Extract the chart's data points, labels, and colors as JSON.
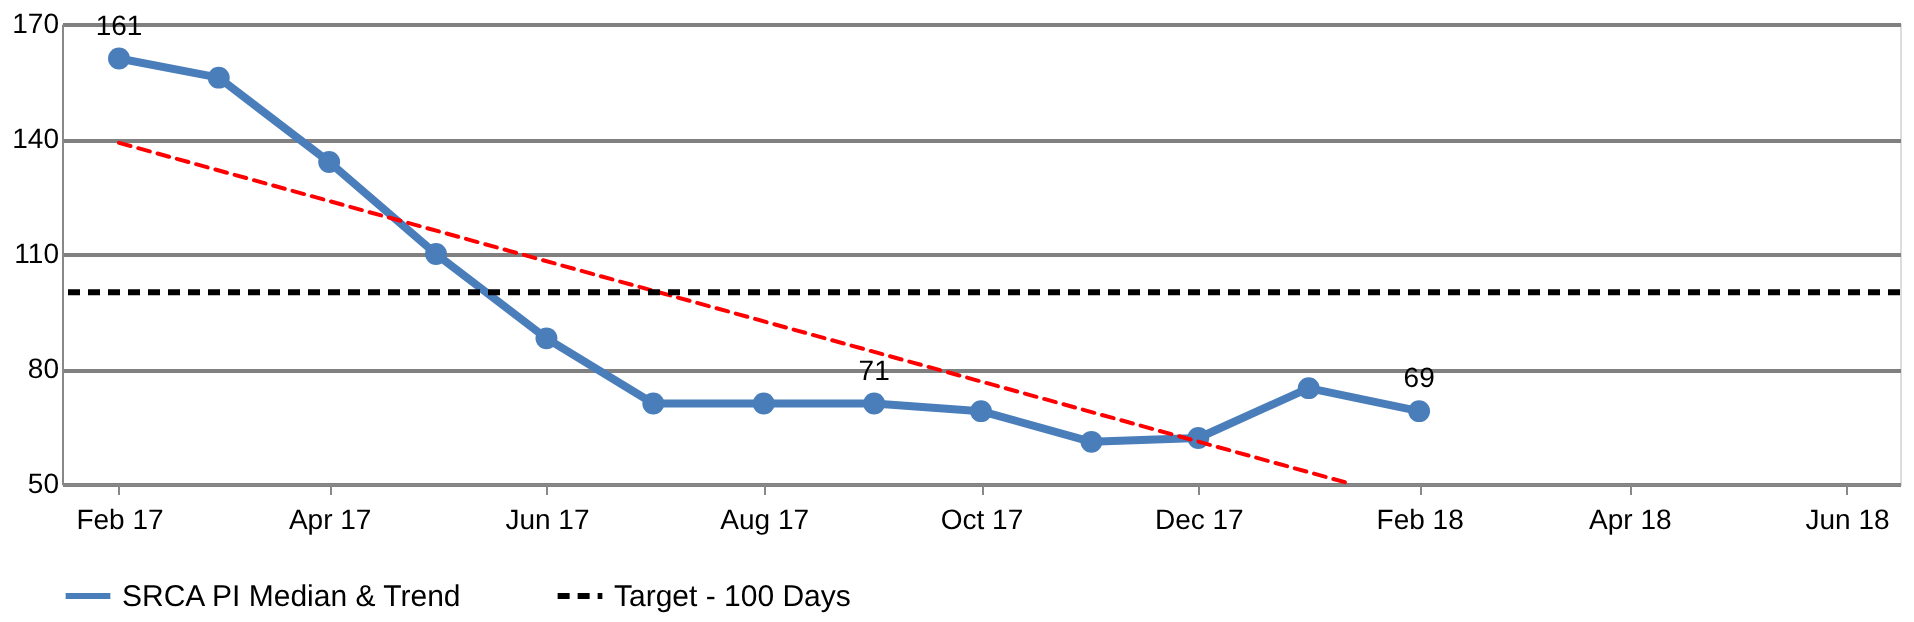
{
  "chart_data": {
    "type": "line",
    "xlim": [
      "2017-01-16",
      "2018-06-16"
    ],
    "xticks": [
      {
        "value": "2017-02",
        "label": "Feb 17"
      },
      {
        "value": "2017-04",
        "label": "Apr 17"
      },
      {
        "value": "2017-06",
        "label": "Jun 17"
      },
      {
        "value": "2017-08",
        "label": "Aug 17"
      },
      {
        "value": "2017-10",
        "label": "Oct 17"
      },
      {
        "value": "2017-12",
        "label": "Dec 17"
      },
      {
        "value": "2018-02",
        "label": "Feb 18"
      },
      {
        "value": "2018-04",
        "label": "Apr 18"
      },
      {
        "value": "2018-06",
        "label": "Jun 18"
      }
    ],
    "ylim": [
      50,
      170
    ],
    "yticks": [
      50,
      80,
      110,
      140,
      170
    ],
    "series": [
      {
        "name": "SRCA PI Median & Trend",
        "color": "#4a7ebb",
        "marker": "circle",
        "line_style": "solid",
        "x": [
          "2017-02",
          "2017-03",
          "2017-04",
          "2017-05",
          "2017-06",
          "2017-07",
          "2017-08",
          "2017-09",
          "2017-10",
          "2017-11",
          "2017-12",
          "2018-01",
          "2018-02"
        ],
        "values": [
          161,
          156,
          134,
          110,
          88,
          71,
          71,
          71,
          69,
          61,
          62,
          75,
          69
        ]
      },
      {
        "type": "line",
        "color": "#ff0000",
        "marker": "none",
        "line_style": "dashed",
        "x": [
          "2017-02",
          "2018-01-13"
        ],
        "values": [
          139,
          50
        ]
      }
    ],
    "ref_lines": [
      {
        "axis": "y",
        "value": 100,
        "label": "Target - 100 Days",
        "color": "#000000",
        "line_style": "dashed"
      }
    ],
    "annotations": [
      {
        "text": "161",
        "x": "2017-02",
        "y": 161
      },
      {
        "text": "71",
        "x": "2017-09",
        "y": 71
      },
      {
        "text": "69",
        "x": "2018-02",
        "y": 69
      }
    ],
    "grid": "y",
    "legend": "bottom"
  }
}
